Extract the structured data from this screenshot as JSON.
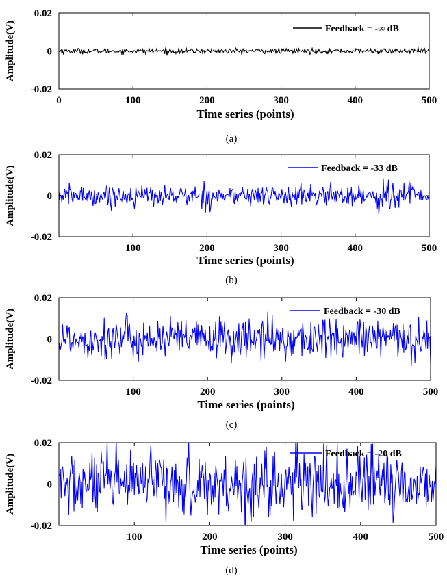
{
  "panels": [
    {
      "caption": "(a)",
      "color": "#000000",
      "legend": "Feedback = -∞ dB",
      "xlabel": "Time series (points)",
      "ylabel": "Amplitude(V)",
      "xticks": [
        "0",
        "100",
        "200",
        "300",
        "400",
        "500"
      ],
      "yticks": [
        "0.02",
        "0",
        "-0.02"
      ]
    },
    {
      "caption": "(b)",
      "color": "#0000ff",
      "legend": "Feedback = -33 dB",
      "xlabel": "Time series (points)",
      "ylabel": "Amplitude(V)",
      "xticks": [
        "100",
        "200",
        "300",
        "400",
        "500"
      ],
      "yticks": [
        "0.02",
        "0",
        "-0.02"
      ]
    },
    {
      "caption": "(c)",
      "color": "#0000ff",
      "legend": "Feedback = -30 dB",
      "xlabel": "Time series (points)",
      "ylabel": "Amplitude(V)",
      "xticks": [
        "100",
        "200",
        "300",
        "400",
        "500"
      ],
      "yticks": [
        "0.02",
        "0",
        "-0.02"
      ]
    },
    {
      "caption": "(d)",
      "color": "#0000ff",
      "legend": "Feedback = -20 dB",
      "xlabel": "Time series (points)",
      "ylabel": "Amplitude(V)",
      "xticks": [
        "100",
        "200",
        "300",
        "400",
        "500"
      ],
      "yticks": [
        "0.02",
        "0",
        "-0.02"
      ]
    }
  ],
  "chart_data": [
    {
      "type": "line",
      "title": "",
      "xlabel": "Time series (points)",
      "ylabel": "Amplitude(V)",
      "xlim": [
        0,
        500
      ],
      "ylim": [
        -0.02,
        0.02
      ],
      "grid": false,
      "legend_position": "top-right",
      "series": [
        {
          "name": "Feedback = -∞ dB",
          "color": "#000000",
          "amplitude_std": 0.0007,
          "points": 500
        }
      ]
    },
    {
      "type": "line",
      "title": "",
      "xlabel": "Time series (points)",
      "ylabel": "Amplitude(V)",
      "xlim": [
        0,
        500
      ],
      "ylim": [
        -0.02,
        0.02
      ],
      "grid": false,
      "legend_position": "top-right",
      "series": [
        {
          "name": "Feedback = -33 dB",
          "color": "#0000ff",
          "amplitude_std": 0.0025,
          "burst_range": [
            420,
            480
          ],
          "burst_peak": 0.009,
          "points": 500
        }
      ]
    },
    {
      "type": "line",
      "title": "",
      "xlabel": "Time series (points)",
      "ylabel": "Amplitude(V)",
      "xlim": [
        0,
        500
      ],
      "ylim": [
        -0.02,
        0.02
      ],
      "grid": false,
      "legend_position": "top-right",
      "series": [
        {
          "name": "Feedback = -30 dB",
          "color": "#0000ff",
          "amplitude_std": 0.005,
          "peak": 0.015,
          "points": 500
        }
      ]
    },
    {
      "type": "line",
      "title": "",
      "xlabel": "Time series (points)",
      "ylabel": "Amplitude(V)",
      "xlim": [
        0,
        500
      ],
      "ylim": [
        -0.02,
        0.02
      ],
      "grid": false,
      "legend_position": "top-right",
      "series": [
        {
          "name": "Feedback = -20 dB",
          "color": "#0000ff",
          "amplitude_std": 0.008,
          "clipped_at_limits": true,
          "points": 500
        }
      ]
    }
  ]
}
